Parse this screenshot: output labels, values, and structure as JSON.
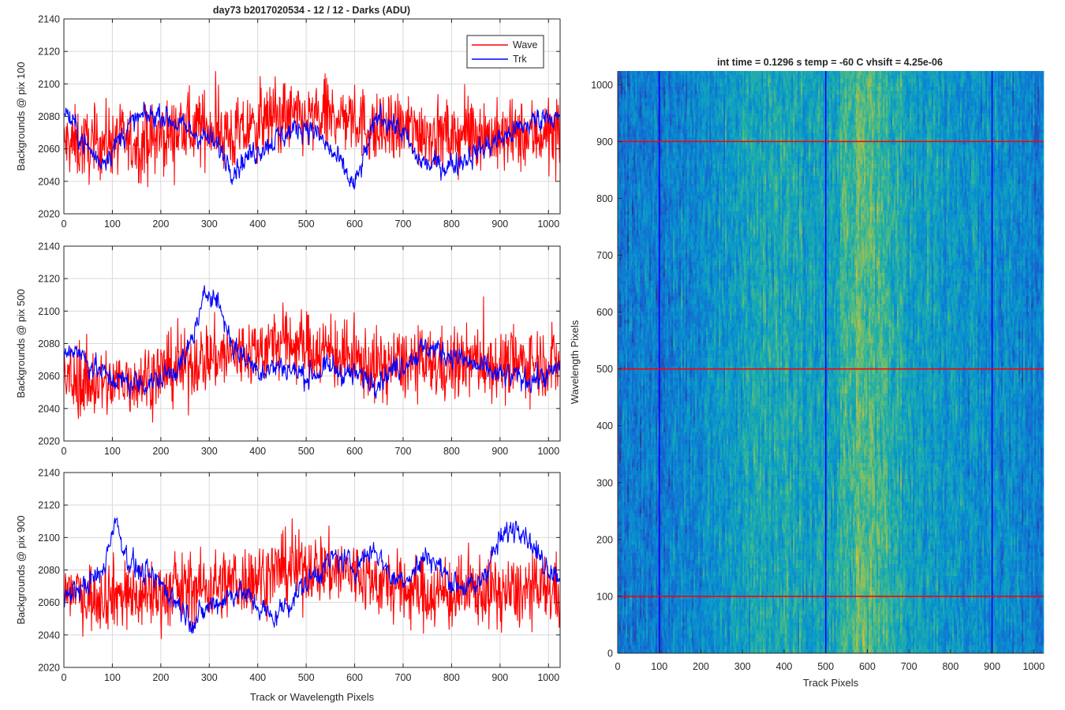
{
  "figure": {
    "title": "day73 b2017020534 - 12 / 12 - Darks (ADU)",
    "right_title": "int time = 0.1296 s    temp = -60 C    vhsift = 4.25e-06"
  },
  "legend": {
    "items": [
      {
        "label": "Wave",
        "color": "#ff0000"
      },
      {
        "label": "Trk",
        "color": "#0000ff"
      }
    ],
    "placement": "top-right of first panel"
  },
  "colors": {
    "wave": "#ff0000",
    "trk": "#0000ff",
    "grid": "#d9d9d9",
    "heatmap_low": "#2c7ec9",
    "heatmap_mid": "#2fb3a6",
    "heatmap_high": "#b8c95a"
  },
  "chart_data": [
    {
      "type": "line",
      "title": "day73 b2017020534 - 12 / 12 - Darks (ADU)",
      "xlabel": "",
      "ylabel": "Backgrounds @ pix 100",
      "xlim": [
        0,
        1024
      ],
      "ylim": [
        2020,
        2140
      ],
      "xticks": [
        0,
        100,
        200,
        300,
        400,
        500,
        600,
        700,
        800,
        900,
        1000
      ],
      "yticks": [
        2020,
        2040,
        2060,
        2080,
        2100,
        2120,
        2140
      ],
      "grid": true,
      "legend": "top-right",
      "series": [
        {
          "name": "Wave",
          "color": "#ff0000",
          "x": [
            0,
            50,
            100,
            150,
            200,
            250,
            300,
            350,
            400,
            450,
            500,
            550,
            600,
            650,
            700,
            750,
            800,
            850,
            900,
            950,
            1000,
            1024
          ],
          "y": [
            2063,
            2062,
            2066,
            2063,
            2067,
            2072,
            2074,
            2067,
            2075,
            2081,
            2077,
            2080,
            2079,
            2069,
            2073,
            2071,
            2066,
            2072,
            2066,
            2068,
            2070,
            2066
          ]
        },
        {
          "name": "Trk",
          "color": "#0000ff",
          "x": [
            0,
            25,
            50,
            75,
            100,
            125,
            150,
            200,
            250,
            300,
            325,
            350,
            400,
            450,
            500,
            525,
            560,
            580,
            600,
            625,
            650,
            700,
            725,
            750,
            800,
            850,
            900,
            950,
            1000,
            1024
          ],
          "y": [
            2085,
            2072,
            2060,
            2052,
            2060,
            2070,
            2078,
            2082,
            2072,
            2066,
            2058,
            2048,
            2060,
            2068,
            2075,
            2068,
            2055,
            2046,
            2036,
            2060,
            2082,
            2070,
            2055,
            2050,
            2050,
            2058,
            2066,
            2074,
            2082,
            2076
          ]
        }
      ]
    },
    {
      "type": "line",
      "title": "",
      "xlabel": "",
      "ylabel": "Backgrounds @ pix 500",
      "xlim": [
        0,
        1024
      ],
      "ylim": [
        2020,
        2140
      ],
      "xticks": [
        0,
        100,
        200,
        300,
        400,
        500,
        600,
        700,
        800,
        900,
        1000
      ],
      "yticks": [
        2020,
        2040,
        2060,
        2080,
        2100,
        2120,
        2140
      ],
      "grid": true,
      "series": [
        {
          "name": "Wave",
          "color": "#ff0000",
          "x": [
            0,
            50,
            100,
            150,
            200,
            250,
            300,
            350,
            400,
            450,
            500,
            550,
            600,
            650,
            700,
            750,
            800,
            850,
            900,
            950,
            1000,
            1024
          ],
          "y": [
            2058,
            2056,
            2055,
            2058,
            2062,
            2066,
            2072,
            2073,
            2076,
            2081,
            2078,
            2075,
            2069,
            2066,
            2068,
            2067,
            2066,
            2070,
            2066,
            2068,
            2070,
            2066
          ]
        },
        {
          "name": "Trk",
          "color": "#0000ff",
          "x": [
            0,
            25,
            50,
            100,
            150,
            200,
            250,
            280,
            300,
            320,
            350,
            400,
            450,
            500,
            550,
            600,
            650,
            700,
            750,
            800,
            850,
            900,
            950,
            1000,
            1024
          ],
          "y": [
            2072,
            2078,
            2068,
            2058,
            2055,
            2058,
            2070,
            2098,
            2115,
            2104,
            2078,
            2064,
            2066,
            2060,
            2065,
            2060,
            2058,
            2068,
            2078,
            2073,
            2066,
            2060,
            2058,
            2060,
            2066
          ]
        }
      ]
    },
    {
      "type": "line",
      "title": "",
      "xlabel": "Track or Wavelength Pixels",
      "ylabel": "Backgrounds @ pix 900",
      "xlim": [
        0,
        1024
      ],
      "ylim": [
        2020,
        2140
      ],
      "xticks": [
        0,
        100,
        200,
        300,
        400,
        500,
        600,
        700,
        800,
        900,
        1000
      ],
      "yticks": [
        2020,
        2040,
        2060,
        2080,
        2100,
        2120,
        2140
      ],
      "grid": true,
      "series": [
        {
          "name": "Wave",
          "color": "#ff0000",
          "x": [
            0,
            50,
            100,
            150,
            200,
            250,
            300,
            350,
            400,
            450,
            500,
            550,
            600,
            650,
            700,
            750,
            800,
            850,
            900,
            950,
            1000,
            1024
          ],
          "y": [
            2068,
            2064,
            2066,
            2064,
            2066,
            2068,
            2070,
            2072,
            2076,
            2080,
            2082,
            2080,
            2078,
            2072,
            2068,
            2066,
            2064,
            2068,
            2066,
            2066,
            2068,
            2066
          ]
        },
        {
          "name": "Trk",
          "color": "#0000ff",
          "x": [
            0,
            40,
            80,
            105,
            130,
            160,
            200,
            240,
            270,
            300,
            330,
            360,
            400,
            430,
            480,
            520,
            560,
            600,
            640,
            680,
            720,
            750,
            800,
            850,
            900,
            940,
            980,
            1024
          ],
          "y": [
            2062,
            2070,
            2078,
            2112,
            2088,
            2078,
            2072,
            2058,
            2048,
            2058,
            2062,
            2068,
            2058,
            2050,
            2065,
            2078,
            2088,
            2082,
            2094,
            2074,
            2078,
            2090,
            2073,
            2068,
            2098,
            2110,
            2088,
            2076
          ]
        }
      ]
    },
    {
      "type": "heatmap",
      "title": "int time = 0.1296 s    temp = -60 C    vhsift = 4.25e-06",
      "xlabel": "Track Pixels",
      "ylabel": "Wavelength Pixels",
      "xlim": [
        0,
        1024
      ],
      "ylim": [
        0,
        1024
      ],
      "xticks": [
        0,
        100,
        200,
        300,
        400,
        500,
        600,
        700,
        800,
        900,
        1000
      ],
      "yticks": [
        0,
        100,
        200,
        300,
        400,
        500,
        600,
        700,
        800,
        900,
        1000
      ],
      "grid": false,
      "colormap": "parula",
      "column_profile": {
        "x": [
          0,
          50,
          100,
          150,
          200,
          250,
          300,
          350,
          400,
          450,
          500,
          550,
          580,
          600,
          650,
          700,
          750,
          800,
          850,
          900,
          950,
          1000,
          1024
        ],
        "level": [
          0.25,
          0.3,
          0.28,
          0.32,
          0.36,
          0.42,
          0.45,
          0.48,
          0.5,
          0.46,
          0.44,
          0.58,
          0.66,
          0.64,
          0.55,
          0.48,
          0.44,
          0.4,
          0.38,
          0.36,
          0.34,
          0.32,
          0.3
        ]
      },
      "vertical_marker_lines": {
        "x": [
          100,
          500,
          900
        ],
        "color": "#0000ff"
      },
      "horizontal_marker_lines": {
        "y": [
          100,
          500,
          900
        ],
        "color": "#ff0000"
      }
    }
  ]
}
